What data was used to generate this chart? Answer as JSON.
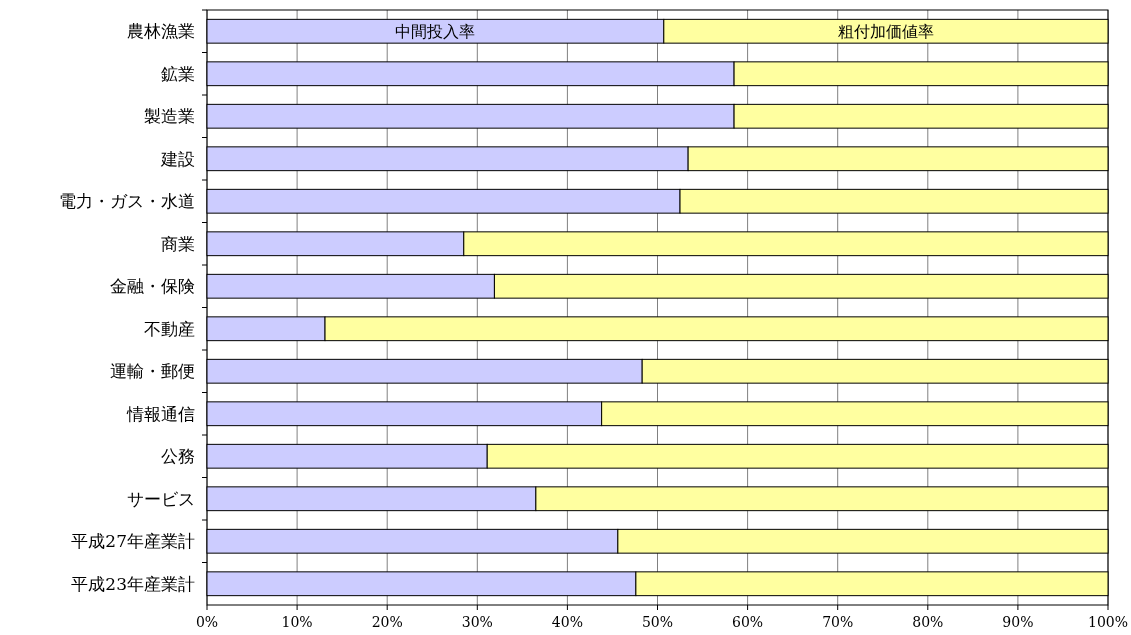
{
  "chart_data": {
    "type": "bar",
    "orientation": "horizontal",
    "stacked": true,
    "categories": [
      "農林漁業",
      "鉱業",
      "製造業",
      "建設",
      "電力・ガス・水道",
      "商業",
      "金融・保険",
      "不動産",
      "運輸・郵便",
      "情報通信",
      "公務",
      "サービス",
      "平成27年産業計",
      "平成23年産業計"
    ],
    "series": [
      {
        "name": "中間投入率",
        "color": "#ccccff",
        "values": [
          50.7,
          58.5,
          58.5,
          53.4,
          52.5,
          28.5,
          31.9,
          13.1,
          48.3,
          43.8,
          31.1,
          36.5,
          45.6,
          47.6
        ]
      },
      {
        "name": "粗付加価値率",
        "color": "#ffffa0",
        "values": [
          49.3,
          41.5,
          41.5,
          46.6,
          47.5,
          71.5,
          68.1,
          86.9,
          51.7,
          56.2,
          68.9,
          63.5,
          54.4,
          52.4
        ]
      }
    ],
    "xlim": [
      0,
      100
    ],
    "xticks": [
      {
        "value": 0,
        "label": "0%"
      },
      {
        "value": 10,
        "label": "10%"
      },
      {
        "value": 20,
        "label": "20%"
      },
      {
        "value": 30,
        "label": "30%"
      },
      {
        "value": 40,
        "label": "40%"
      },
      {
        "value": 50,
        "label": "50%"
      },
      {
        "value": 60,
        "label": "60%"
      },
      {
        "value": 70,
        "label": "70%"
      },
      {
        "value": 80,
        "label": "80%"
      },
      {
        "value": 90,
        "label": "90%"
      },
      {
        "value": 100,
        "label": "100%"
      }
    ],
    "grid": "x",
    "legend": false
  }
}
